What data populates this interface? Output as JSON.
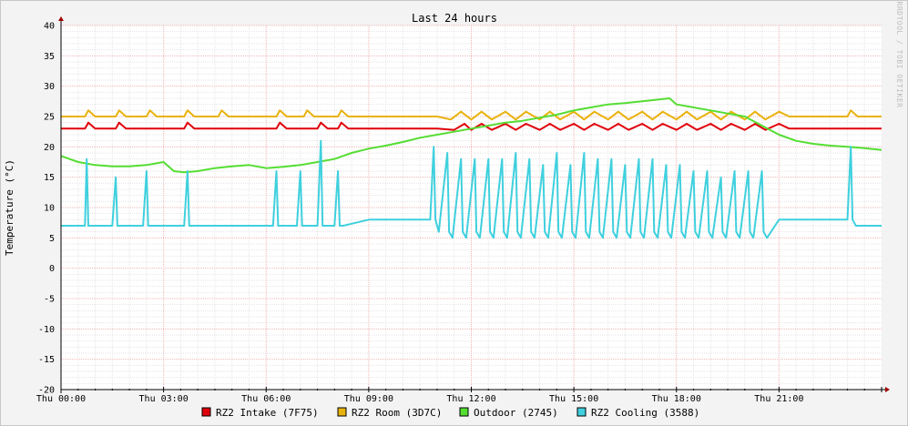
{
  "watermark": "RRDTOOL / TOBI OETIKER",
  "chart_data": {
    "type": "line",
    "title": "Last 24 hours",
    "ylabel": "Temperature (°C)",
    "xlabel": "",
    "x_ticks": [
      "Thu 00:00",
      "Thu 03:00",
      "Thu 06:00",
      "Thu 09:00",
      "Thu 12:00",
      "Thu 15:00",
      "Thu 18:00",
      "Thu 21:00"
    ],
    "y_ticks": [
      40,
      35,
      30,
      25,
      20,
      15,
      10,
      5,
      0,
      -5,
      -10,
      -15,
      -20
    ],
    "ylim": [
      -20,
      40
    ],
    "xlim_hours": [
      0,
      24
    ],
    "grid": true,
    "legend_position": "bottom",
    "series": [
      {
        "name": "RZ2 Intake (7F75)",
        "color": "#e0000a",
        "x": [
          0,
          0.7,
          0.8,
          1,
          1.6,
          1.7,
          1.9,
          3.6,
          3.7,
          3.9,
          6.3,
          6.4,
          6.6,
          7.5,
          7.6,
          7.8,
          8.1,
          8.2,
          8.4,
          11,
          11.5,
          11.8,
          12,
          12.3,
          12.6,
          13,
          13.3,
          13.6,
          14,
          14.3,
          14.6,
          15,
          15.3,
          15.6,
          16,
          16.3,
          16.6,
          17,
          17.3,
          17.6,
          18,
          18.3,
          18.6,
          19,
          19.3,
          19.6,
          20,
          20.3,
          20.6,
          21,
          21.3,
          22,
          23,
          24
        ],
        "values": [
          23,
          23,
          24,
          23,
          23,
          24,
          23,
          23,
          24,
          23,
          23,
          24,
          23,
          23,
          24,
          23,
          23,
          24,
          23,
          23,
          22.8,
          23.8,
          22.8,
          23.8,
          22.8,
          23.8,
          22.8,
          23.8,
          22.8,
          23.8,
          22.8,
          23.8,
          22.8,
          23.8,
          22.8,
          23.8,
          22.8,
          23.8,
          22.8,
          23.8,
          22.8,
          23.8,
          22.8,
          23.8,
          22.8,
          23.8,
          22.8,
          23.8,
          22.8,
          23.8,
          23,
          23,
          23,
          23
        ]
      },
      {
        "name": "RZ2 Room (3D7C)",
        "color": "#e8b20c",
        "x": [
          0,
          0.7,
          0.8,
          1,
          1.6,
          1.7,
          1.9,
          2.5,
          2.6,
          2.8,
          3.6,
          3.7,
          3.9,
          4.6,
          4.7,
          4.9,
          6.3,
          6.4,
          6.6,
          7.1,
          7.2,
          7.4,
          8.1,
          8.2,
          8.4,
          11,
          11.4,
          11.7,
          12,
          12.3,
          12.6,
          13,
          13.3,
          13.6,
          14,
          14.3,
          14.6,
          15,
          15.3,
          15.6,
          16,
          16.3,
          16.6,
          17,
          17.3,
          17.6,
          18,
          18.3,
          18.6,
          19,
          19.3,
          19.6,
          20,
          20.3,
          20.6,
          21,
          21.3,
          22,
          23,
          23.1,
          23.3,
          24
        ],
        "values": [
          25,
          25,
          26,
          25,
          25,
          26,
          25,
          25,
          26,
          25,
          25,
          26,
          25,
          25,
          26,
          25,
          25,
          26,
          25,
          25,
          26,
          25,
          25,
          26,
          25,
          25,
          24.5,
          25.8,
          24.5,
          25.8,
          24.5,
          25.8,
          24.5,
          25.8,
          24.5,
          25.8,
          24.5,
          25.8,
          24.5,
          25.8,
          24.5,
          25.8,
          24.5,
          25.8,
          24.5,
          25.8,
          24.5,
          25.8,
          24.5,
          25.8,
          24.5,
          25.8,
          24.5,
          25.8,
          24.5,
          25.8,
          25,
          25,
          25,
          26,
          25,
          25
        ]
      },
      {
        "name": "Outdoor (2745)",
        "color": "#55dd33",
        "x": [
          0,
          0.5,
          1,
          1.5,
          2,
          2.5,
          3,
          3.3,
          3.6,
          4,
          4.5,
          5,
          5.5,
          6,
          6.5,
          7,
          7.5,
          8,
          8.5,
          9,
          9.5,
          10,
          10.5,
          11,
          11.5,
          12,
          12.5,
          13,
          13.5,
          14,
          14.5,
          15,
          15.5,
          16,
          16.5,
          17,
          17.5,
          17.8,
          18,
          18.5,
          19,
          19.5,
          20,
          20.5,
          21,
          21.5,
          22,
          22.5,
          23,
          23.5,
          24
        ],
        "values": [
          18.5,
          17.5,
          17,
          16.8,
          16.8,
          17,
          17.5,
          16,
          15.8,
          16,
          16.5,
          16.8,
          17,
          16.5,
          16.7,
          17,
          17.5,
          18,
          19,
          19.7,
          20.2,
          20.8,
          21.5,
          22,
          22.5,
          23,
          23.5,
          24,
          24.3,
          24.8,
          25.3,
          26,
          26.5,
          27,
          27.2,
          27.5,
          27.8,
          28,
          27,
          26.5,
          26,
          25.5,
          25,
          23.5,
          22,
          21,
          20.5,
          20.2,
          20,
          19.8,
          19.5
        ]
      },
      {
        "name": "RZ2 Cooling (3588)",
        "color": "#3fd0de",
        "x": [
          0,
          0.7,
          0.75,
          0.8,
          0.9,
          1.5,
          1.6,
          1.65,
          1.75,
          2.4,
          2.5,
          2.55,
          2.65,
          3.6,
          3.7,
          3.75,
          3.85,
          6.2,
          6.3,
          6.35,
          6.45,
          6.9,
          7,
          7.05,
          7.15,
          7.5,
          7.6,
          7.65,
          7.75,
          8,
          8.1,
          8.15,
          8.25,
          9,
          10,
          10.5,
          10.8,
          10.9,
          10.95,
          11.05,
          11.3,
          11.35,
          11.45,
          11.7,
          11.75,
          11.85,
          12.1,
          12.15,
          12.25,
          12.5,
          12.55,
          12.65,
          12.9,
          12.95,
          13.05,
          13.3,
          13.35,
          13.45,
          13.7,
          13.75,
          13.85,
          14.1,
          14.15,
          14.25,
          14.5,
          14.55,
          14.65,
          14.9,
          14.95,
          15.05,
          15.3,
          15.35,
          15.45,
          15.7,
          15.75,
          15.85,
          16.1,
          16.15,
          16.25,
          16.5,
          16.55,
          16.65,
          16.9,
          16.95,
          17.05,
          17.3,
          17.35,
          17.45,
          17.7,
          17.75,
          17.85,
          18.1,
          18.15,
          18.25,
          18.5,
          18.55,
          18.65,
          18.9,
          18.95,
          19.05,
          19.3,
          19.35,
          19.45,
          19.7,
          19.75,
          19.85,
          20.1,
          20.15,
          20.25,
          20.5,
          20.55,
          20.65,
          21,
          21.5,
          22,
          22.5,
          23,
          23.1,
          23.15,
          23.25,
          23.7,
          24
        ],
        "values": [
          7,
          7,
          18,
          7,
          7,
          7,
          15,
          7,
          7,
          7,
          16,
          7,
          7,
          7,
          16,
          7,
          7,
          7,
          16,
          7,
          7,
          7,
          16,
          7,
          7,
          7,
          21,
          7,
          7,
          7,
          16,
          7,
          7,
          8,
          8,
          8,
          8,
          20,
          8,
          6,
          19,
          6,
          5,
          18,
          6,
          5,
          18,
          6,
          5,
          18,
          6,
          5,
          18,
          6,
          5,
          19,
          6,
          5,
          18,
          6,
          5,
          17,
          6,
          5,
          19,
          6,
          5,
          17,
          6,
          5,
          19,
          6,
          5,
          18,
          6,
          5,
          18,
          6,
          5,
          17,
          6,
          5,
          18,
          6,
          5,
          18,
          6,
          5,
          17,
          6,
          5,
          17,
          6,
          5,
          16,
          6,
          5,
          16,
          6,
          5,
          15,
          6,
          5,
          16,
          6,
          5,
          16,
          6,
          5,
          16,
          6,
          5,
          8,
          8,
          8,
          8,
          8,
          20,
          8,
          7,
          7,
          7
        ]
      }
    ]
  }
}
